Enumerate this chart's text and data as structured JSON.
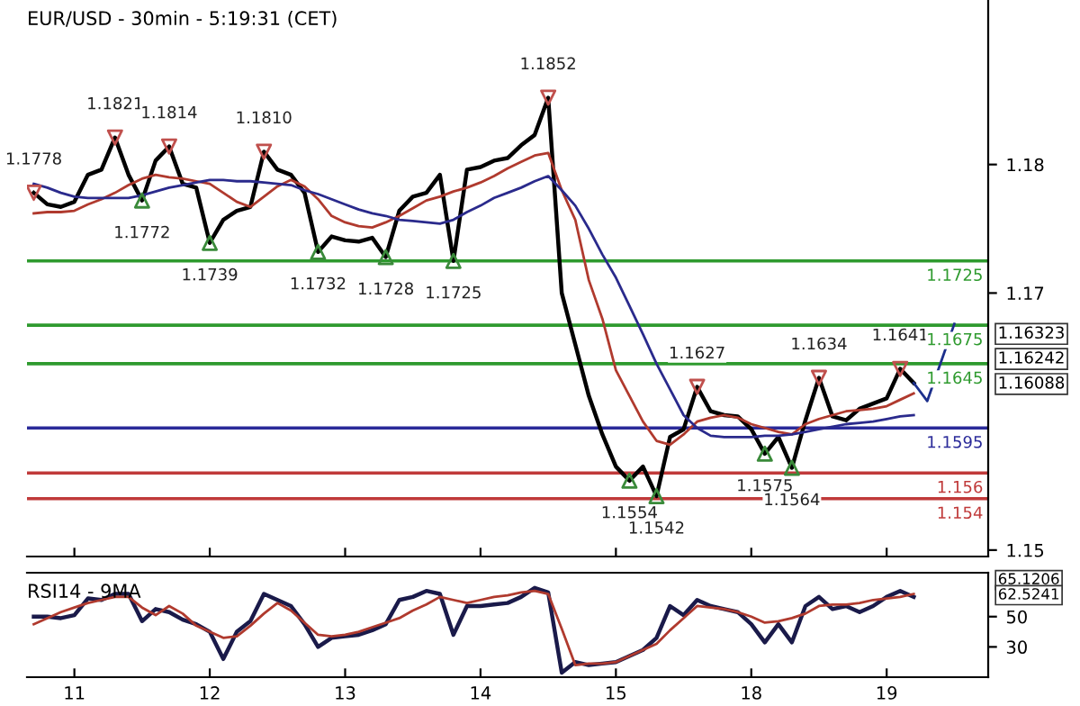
{
  "chart_data": [
    {
      "type": "line",
      "title": "EUR/USD - 30min - 5:19:31 (CET)",
      "ylim": [
        1.1495,
        1.1928
      ],
      "yticks": [
        1.15,
        1.17,
        1.18
      ],
      "tick_labels": "y",
      "grid": false,
      "legend": false,
      "categories": [
        null,
        null,
        null,
        "11",
        null,
        null,
        null,
        null,
        null,
        null,
        null,
        null,
        null,
        "12",
        null,
        null,
        null,
        null,
        null,
        null,
        null,
        null,
        null,
        "13",
        null,
        null,
        null,
        null,
        null,
        null,
        null,
        null,
        null,
        "14",
        null,
        null,
        null,
        null,
        null,
        null,
        null,
        null,
        null,
        "15",
        null,
        null,
        null,
        null,
        null,
        null,
        null,
        null,
        null,
        "18",
        null,
        null,
        null,
        null,
        null,
        null,
        null,
        null,
        null,
        "19",
        null,
        null,
        null,
        null,
        null,
        null,
        null
      ],
      "series": [
        {
          "color": "#000000",
          "values": [
            1.1778,
            1.1769,
            1.1767,
            1.1771,
            1.1792,
            1.1796,
            1.1821,
            1.1792,
            1.1772,
            1.1803,
            1.1814,
            1.1785,
            1.1782,
            1.1739,
            1.1757,
            1.1764,
            1.1767,
            1.181,
            1.1796,
            1.1792,
            1.1778,
            1.1732,
            1.1744,
            1.1741,
            1.174,
            1.1743,
            1.1728,
            1.1764,
            1.1775,
            1.1778,
            1.1792,
            1.1725,
            1.1796,
            1.1798,
            1.1803,
            1.1805,
            1.1815,
            1.1823,
            1.1852,
            1.17,
            1.166,
            1.162,
            1.159,
            1.1565,
            1.1554,
            1.1565,
            1.1542,
            1.1588,
            1.1594,
            1.1627,
            1.1608,
            1.1605,
            1.1604,
            1.1594,
            1.1575,
            1.1588,
            1.1564,
            1.1601,
            1.1634,
            1.1604,
            1.1601,
            1.161,
            1.1614,
            1.1618,
            1.1641,
            1.163,
            null,
            null,
            null,
            null,
            null
          ]
        },
        {
          "color": "#b03a2e",
          "values": [
            1.1762,
            1.1763,
            1.1763,
            1.1764,
            1.1769,
            1.1773,
            1.1778,
            1.1784,
            1.1789,
            1.1792,
            1.179,
            1.1789,
            1.1787,
            1.1785,
            1.1778,
            1.1771,
            1.1767,
            1.1775,
            1.1783,
            1.1788,
            1.1783,
            1.1773,
            1.176,
            1.1755,
            1.1752,
            1.1751,
            1.1755,
            1.176,
            1.1766,
            1.1772,
            1.1775,
            1.1779,
            1.1782,
            1.1786,
            1.1791,
            1.1797,
            1.1802,
            1.1807,
            1.1809,
            1.178,
            1.1757,
            1.171,
            1.168,
            1.164,
            1.162,
            1.16,
            1.1585,
            1.1582,
            1.159,
            1.16,
            1.1603,
            1.1605,
            1.1603,
            1.1598,
            1.1595,
            1.1592,
            1.159,
            1.1598,
            1.1602,
            1.1605,
            1.1608,
            1.1609,
            1.161,
            1.1612,
            1.1617,
            1.1622,
            null,
            null,
            null,
            null,
            null
          ]
        },
        {
          "color": "#2a2a8c",
          "values": [
            1.1785,
            1.1782,
            1.1778,
            1.1775,
            1.1774,
            1.1774,
            1.1774,
            1.1774,
            1.1776,
            1.1779,
            1.1782,
            1.1784,
            1.1786,
            1.1788,
            1.1788,
            1.1787,
            1.1787,
            1.1786,
            1.1785,
            1.1784,
            1.178,
            1.1777,
            1.1773,
            1.1769,
            1.1765,
            1.1762,
            1.176,
            1.1757,
            1.1756,
            1.1755,
            1.1754,
            1.1757,
            1.1763,
            1.1768,
            1.1774,
            1.1778,
            1.1782,
            1.1787,
            1.1791,
            1.178,
            1.1768,
            1.175,
            1.173,
            1.1712,
            1.169,
            1.1668,
            1.1645,
            1.1625,
            1.1605,
            1.1595,
            1.1589,
            1.1588,
            1.1588,
            1.1588,
            1.1589,
            1.1589,
            1.159,
            1.1592,
            1.1594,
            1.1596,
            1.1598,
            1.1599,
            1.16,
            1.1602,
            1.1604,
            1.1605,
            null,
            null,
            null,
            null,
            null
          ]
        },
        {
          "color": "#1c2f8c",
          "values": [
            null,
            null,
            null,
            null,
            null,
            null,
            null,
            null,
            null,
            null,
            null,
            null,
            null,
            null,
            null,
            null,
            null,
            null,
            null,
            null,
            null,
            null,
            null,
            null,
            null,
            null,
            null,
            null,
            null,
            null,
            null,
            null,
            null,
            null,
            null,
            null,
            null,
            null,
            null,
            null,
            null,
            null,
            null,
            null,
            null,
            null,
            null,
            null,
            null,
            null,
            null,
            null,
            null,
            null,
            null,
            null,
            null,
            null,
            null,
            null,
            null,
            null,
            null,
            null,
            null,
            1.163,
            1.1616,
            1.1646,
            1.1676,
            null,
            null
          ]
        },
        {
          "type": "scatter",
          "marker": "triangle",
          "color": "#c0504d",
          "values": [
            1.1778,
            null,
            null,
            null,
            null,
            null,
            1.1821,
            null,
            null,
            null,
            1.1814,
            null,
            null,
            null,
            null,
            null,
            null,
            1.181,
            null,
            null,
            null,
            null,
            null,
            null,
            null,
            null,
            null,
            null,
            null,
            null,
            null,
            null,
            null,
            null,
            null,
            null,
            null,
            null,
            1.1852,
            null,
            null,
            null,
            null,
            null,
            null,
            null,
            null,
            null,
            null,
            1.1627,
            null,
            null,
            null,
            null,
            null,
            null,
            null,
            null,
            1.1634,
            null,
            null,
            null,
            null,
            null,
            1.1641,
            null,
            null,
            null,
            null,
            null,
            null
          ],
          "value_labels": [
            "1.1778",
            null,
            null,
            null,
            null,
            null,
            "1.1821",
            null,
            null,
            null,
            "1.1814",
            null,
            null,
            null,
            null,
            null,
            null,
            "1.1810",
            null,
            null,
            null,
            null,
            null,
            null,
            null,
            null,
            null,
            null,
            null,
            null,
            null,
            null,
            null,
            null,
            null,
            null,
            null,
            null,
            "1.1852",
            null,
            null,
            null,
            null,
            null,
            null,
            null,
            null,
            null,
            null,
            "1.1627",
            null,
            null,
            null,
            null,
            null,
            null,
            null,
            null,
            "1.1634",
            null,
            null,
            null,
            null,
            null,
            "1.1641",
            null,
            null,
            null,
            null,
            null,
            null
          ]
        },
        {
          "type": "scatter",
          "marker": "triangle",
          "color": "#3a8a3a",
          "values": [
            null,
            null,
            null,
            null,
            null,
            null,
            null,
            null,
            1.1772,
            null,
            null,
            null,
            null,
            1.1739,
            null,
            null,
            null,
            null,
            null,
            null,
            null,
            1.1732,
            null,
            null,
            null,
            null,
            1.1728,
            null,
            null,
            null,
            null,
            1.1725,
            null,
            null,
            null,
            null,
            null,
            null,
            null,
            null,
            null,
            null,
            null,
            null,
            1.1554,
            null,
            1.1542,
            null,
            null,
            null,
            null,
            null,
            null,
            null,
            1.1575,
            null,
            1.1564,
            null,
            null,
            null,
            null,
            null,
            null,
            null,
            null,
            null,
            null,
            null,
            null,
            null,
            null
          ],
          "value_labels": [
            null,
            null,
            null,
            null,
            null,
            null,
            null,
            null,
            "1.1772",
            null,
            null,
            null,
            null,
            "1.1739",
            null,
            null,
            null,
            null,
            null,
            null,
            null,
            "1.1732",
            null,
            null,
            null,
            null,
            "1.1728",
            null,
            null,
            null,
            null,
            "1.1725",
            null,
            null,
            null,
            null,
            null,
            null,
            null,
            null,
            null,
            null,
            null,
            null,
            "1.1554",
            null,
            "1.1542",
            null,
            null,
            null,
            null,
            null,
            null,
            null,
            "1.1575",
            null,
            "1.1564",
            null,
            null,
            null,
            null,
            null,
            null,
            null,
            null,
            null,
            null,
            null,
            null,
            null,
            null
          ]
        }
      ],
      "ref_lines": [
        {
          "axis": "y",
          "value": 1.1725,
          "label": "1.1725",
          "color": "#2e9a2e"
        },
        {
          "axis": "y",
          "value": 1.1675,
          "label": "1.1675",
          "color": "#2e9a2e"
        },
        {
          "axis": "y",
          "value": 1.1645,
          "label": "1.1645",
          "color": "#2e9a2e"
        },
        {
          "axis": "y",
          "value": 1.1595,
          "label": "1.1595",
          "color": "#2a2a99"
        },
        {
          "axis": "y",
          "value": 1.156,
          "label": "1.156",
          "color": "#c03a3a"
        },
        {
          "axis": "y",
          "value": 1.154,
          "label": "1.154",
          "color": "#c03a3a"
        }
      ],
      "annotations": [
        "1.16323",
        "1.16242",
        "1.16088"
      ]
    },
    {
      "type": "line",
      "title": "RSI14 - 9MA",
      "ylim": [
        10,
        79
      ],
      "yticks": [
        30,
        50
      ],
      "grid": false,
      "legend": false,
      "categories": [
        null,
        null,
        null,
        "11",
        null,
        null,
        null,
        null,
        null,
        null,
        null,
        null,
        null,
        "12",
        null,
        null,
        null,
        null,
        null,
        null,
        null,
        null,
        null,
        "13",
        null,
        null,
        null,
        null,
        null,
        null,
        null,
        null,
        null,
        "14",
        null,
        null,
        null,
        null,
        null,
        null,
        null,
        null,
        null,
        "15",
        null,
        null,
        null,
        null,
        null,
        null,
        null,
        null,
        null,
        "18",
        null,
        null,
        null,
        null,
        null,
        null,
        null,
        null,
        null,
        "19",
        null,
        null,
        null,
        null,
        null,
        null,
        null
      ],
      "series": [
        {
          "color": "#1a1a4a",
          "values": [
            50,
            50,
            49,
            51,
            62,
            61,
            65,
            65,
            47,
            55,
            53,
            48,
            45,
            40,
            22,
            40,
            47,
            65,
            61,
            57,
            45,
            30,
            36,
            37,
            38,
            41,
            45,
            61,
            63,
            67,
            65,
            38,
            57,
            57,
            58,
            59,
            63,
            69,
            66,
            13,
            20,
            18,
            19,
            20,
            24,
            28,
            36,
            57,
            51,
            61,
            57,
            55,
            53,
            45,
            33,
            45,
            33,
            57,
            63,
            55,
            57,
            53,
            57,
            63,
            67,
            63,
            null,
            null,
            null,
            null,
            null
          ]
        },
        {
          "color": "#b03a2e",
          "values": [
            45,
            49,
            53,
            56,
            59,
            61,
            63,
            63,
            56,
            51,
            57,
            52,
            44,
            40,
            36,
            37,
            44,
            52,
            59,
            54,
            46,
            38,
            37,
            38,
            40,
            43,
            46,
            49,
            54,
            58,
            63,
            61,
            59,
            61,
            63,
            64,
            66,
            67,
            65,
            42,
            18,
            19,
            19,
            20,
            24,
            28,
            32,
            41,
            49,
            57,
            56,
            55,
            53,
            50,
            46,
            47,
            49,
            52,
            57,
            58,
            58,
            59,
            61,
            62,
            63,
            65,
            null,
            null,
            null,
            null,
            null
          ]
        }
      ],
      "annotations": [
        "65.1206",
        "62.5241"
      ]
    }
  ]
}
